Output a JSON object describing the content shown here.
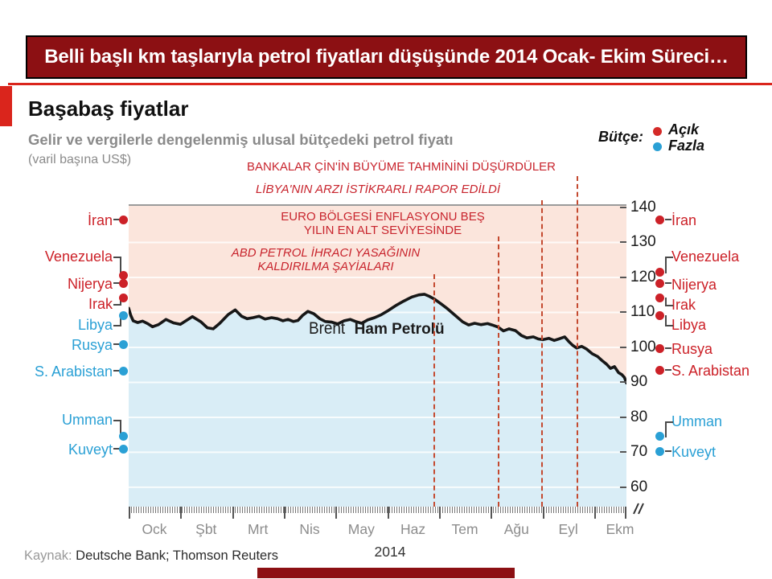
{
  "banner": {
    "title": "Belli başlı km taşlarıyla petrol fiyatları düşüşünde 2014 Ocak- Ekim Süreci…"
  },
  "header": {
    "title": "Başabaş fiyatlar",
    "subtitle": "Gelir ve vergilerle dengelenmiş ulusal bütçedeki petrol fiyatı",
    "unit_note": "(varil başına US$)"
  },
  "legend": {
    "label": "Bütçe:",
    "items": [
      {
        "label": "Açık",
        "status": "deficit",
        "color": "#d42a28"
      },
      {
        "label": "Fazla",
        "status": "surplus",
        "color": "#2aa0d5"
      }
    ]
  },
  "series_label": {
    "regular": "Brent",
    "bold": "Ham Petrolü"
  },
  "footer": {
    "source_label": "Kaynak:",
    "source_text": "Deutsche Bank; Thomson Reuters"
  },
  "colors": {
    "accent_red": "#da251c",
    "banner_bg": "#8c1013",
    "label_red": "#cc2128",
    "label_blue": "#2aa0d5",
    "annotation_red": "#c8242d",
    "fill_above_line_pink": "#fbe5dc",
    "fill_below_line_blue": "#d9edf6",
    "brent_line": "#171717",
    "event_dash": "#c44a30",
    "grid_white": "rgba(255,255,255,0.8)"
  },
  "chart_data": {
    "type": "line",
    "title": "Başabaş fiyatlar",
    "subtitle": "Gelir ve vergilerle dengelenmiş ulusal bütçedeki petrol fiyatı (varil başına US$)",
    "x_axis": {
      "year": "2014",
      "months": [
        "Ock",
        "Şbt",
        "Mrt",
        "Nis",
        "May",
        "Haz",
        "Tem",
        "Ağu",
        "Eyl",
        "Ekm"
      ]
    },
    "y_axis": {
      "ticks": [
        140,
        130,
        120,
        110,
        100,
        90,
        80,
        70,
        60
      ],
      "unit": "US$ / varil"
    },
    "series": {
      "name": "Brent Ham Petrolü",
      "points": [
        [
          0.0,
          111.2
        ],
        [
          0.004,
          109.2
        ],
        [
          0.009,
          107.6
        ],
        [
          0.018,
          107.1
        ],
        [
          0.028,
          107.5
        ],
        [
          0.038,
          106.8
        ],
        [
          0.048,
          105.9
        ],
        [
          0.06,
          106.5
        ],
        [
          0.075,
          108.0
        ],
        [
          0.09,
          107.0
        ],
        [
          0.104,
          106.6
        ],
        [
          0.116,
          107.7
        ],
        [
          0.128,
          108.8
        ],
        [
          0.145,
          107.3
        ],
        [
          0.158,
          105.6
        ],
        [
          0.17,
          105.3
        ],
        [
          0.183,
          106.9
        ],
        [
          0.2,
          109.4
        ],
        [
          0.214,
          110.7
        ],
        [
          0.227,
          108.9
        ],
        [
          0.238,
          108.2
        ],
        [
          0.25,
          108.5
        ],
        [
          0.262,
          108.9
        ],
        [
          0.274,
          108.1
        ],
        [
          0.287,
          108.5
        ],
        [
          0.299,
          108.2
        ],
        [
          0.31,
          107.6
        ],
        [
          0.32,
          108.0
        ],
        [
          0.331,
          107.4
        ],
        [
          0.34,
          107.7
        ],
        [
          0.35,
          109.2
        ],
        [
          0.36,
          110.3
        ],
        [
          0.372,
          109.6
        ],
        [
          0.384,
          108.2
        ],
        [
          0.395,
          107.4
        ],
        [
          0.408,
          107.2
        ],
        [
          0.42,
          106.7
        ],
        [
          0.433,
          107.6
        ],
        [
          0.445,
          108.0
        ],
        [
          0.456,
          107.4
        ],
        [
          0.468,
          106.9
        ],
        [
          0.481,
          107.9
        ],
        [
          0.494,
          108.5
        ],
        [
          0.507,
          109.3
        ],
        [
          0.52,
          110.4
        ],
        [
          0.536,
          111.9
        ],
        [
          0.552,
          113.2
        ],
        [
          0.569,
          114.4
        ],
        [
          0.583,
          115.0
        ],
        [
          0.594,
          115.2
        ],
        [
          0.604,
          114.6
        ],
        [
          0.614,
          113.8
        ],
        [
          0.627,
          112.5
        ],
        [
          0.64,
          111.1
        ],
        [
          0.654,
          109.4
        ],
        [
          0.671,
          107.3
        ],
        [
          0.683,
          106.4
        ],
        [
          0.695,
          106.9
        ],
        [
          0.708,
          106.5
        ],
        [
          0.721,
          106.8
        ],
        [
          0.73,
          106.4
        ],
        [
          0.742,
          105.8
        ],
        [
          0.753,
          104.7
        ],
        [
          0.764,
          105.3
        ],
        [
          0.777,
          104.8
        ],
        [
          0.789,
          103.4
        ],
        [
          0.8,
          102.7
        ],
        [
          0.813,
          103.0
        ],
        [
          0.823,
          102.4
        ],
        [
          0.832,
          102.2
        ],
        [
          0.844,
          102.6
        ],
        [
          0.855,
          102.0
        ],
        [
          0.866,
          102.5
        ],
        [
          0.876,
          103.0
        ],
        [
          0.884,
          101.7
        ],
        [
          0.892,
          100.6
        ],
        [
          0.9,
          99.8
        ],
        [
          0.91,
          100.3
        ],
        [
          0.92,
          99.5
        ],
        [
          0.931,
          98.2
        ],
        [
          0.942,
          97.4
        ],
        [
          0.952,
          96.1
        ],
        [
          0.96,
          95.2
        ],
        [
          0.968,
          94.0
        ],
        [
          0.976,
          94.5
        ],
        [
          0.984,
          92.8
        ],
        [
          0.991,
          92.2
        ],
        [
          0.996,
          91.4
        ],
        [
          1.0,
          89.8
        ]
      ]
    },
    "events": [
      {
        "x_frac": 0.613,
        "lines": [
          "ABD PETROL İHRACI YASAĞININ",
          "KALDIRILMA ŞAYİALARI"
        ],
        "style": "italic"
      },
      {
        "x_frac": 0.743,
        "lines": [
          "EURO BÖLGESİ ENFLASYONU BEŞ",
          "YILIN EN ALT SEVİYESİNDE"
        ],
        "style": "normal"
      },
      {
        "x_frac": 0.83,
        "lines": [
          "LİBYA'NIN ARZI İSTİKRARLI RAPOR EDİLDİ"
        ],
        "style": "italic"
      },
      {
        "x_frac": 0.901,
        "lines": [
          "BANKALAR ÇİN'İN BÜYÜME TAHMİNİNİ DÜŞÜRDÜLER"
        ],
        "style": "normal"
      }
    ],
    "breakeven_prices": [
      {
        "country": "İran",
        "value": 136.5,
        "status_jan": "deficit",
        "status_oct": "deficit"
      },
      {
        "country": "Venezuela",
        "value": 121.5,
        "status_jan": "deficit",
        "status_oct": "deficit"
      },
      {
        "country": "Nijerya",
        "value": 118.5,
        "status_jan": "deficit",
        "status_oct": "deficit"
      },
      {
        "country": "Irak",
        "value": 114.0,
        "status_jan": "deficit",
        "status_oct": "deficit"
      },
      {
        "country": "Libya",
        "value": 109.0,
        "status_jan": "surplus",
        "status_oct": "deficit"
      },
      {
        "country": "Rusya",
        "value": 100.0,
        "status_jan": "surplus",
        "status_oct": "deficit"
      },
      {
        "country": "S. Arabistan",
        "value": 93.5,
        "status_jan": "surplus",
        "status_oct": "deficit"
      },
      {
        "country": "Umman",
        "value": 75.0,
        "status_jan": "surplus",
        "status_oct": "surplus"
      },
      {
        "country": "Kuveyt",
        "value": 70.5,
        "status_jan": "surplus",
        "status_oct": "surplus"
      }
    ]
  }
}
